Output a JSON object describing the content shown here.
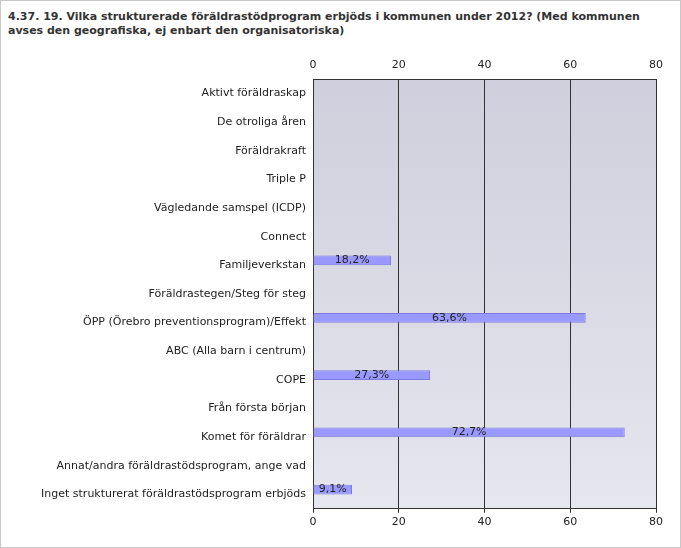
{
  "chart_data": {
    "type": "bar",
    "orientation": "horizontal",
    "title": "4.37. 19. Vilka strukturerade föräldrastödprogram erbjöds i kommunen under 2012? (Med kommunen avses den geografiska, ej enbart den organisatoriska)",
    "categories": [
      "Aktivt föräldraskap",
      "De otroliga åren",
      "Föräldrakraft",
      "Triple P",
      "Vägledande samspel (ICDP)",
      "Connect",
      "Familjeverkstan",
      "Föräldrastegen/Steg för steg",
      "ÖPP (Örebro preventionsprogram)/Effekt",
      "ABC (Alla barn i centrum)",
      "COPE",
      "Från första början",
      "Komet för föräldrar",
      "Annat/andra föräldrastödsprogram, ange vad",
      "Inget strukturerat föräldrastödsprogram erbjöds"
    ],
    "values": [
      0,
      0,
      0,
      0,
      0,
      0,
      18.2,
      0,
      63.6,
      0,
      27.3,
      0,
      72.7,
      0,
      9.1
    ],
    "value_labels": [
      null,
      null,
      null,
      null,
      null,
      null,
      "18,2%",
      null,
      "63,6%",
      null,
      "27,3%",
      null,
      "72,7%",
      null,
      "9,1%"
    ],
    "data_labels": true,
    "color": "#9999ff",
    "xlim": [
      0,
      80
    ],
    "xticks": [
      0,
      20,
      40,
      60,
      80
    ],
    "grid": true
  }
}
